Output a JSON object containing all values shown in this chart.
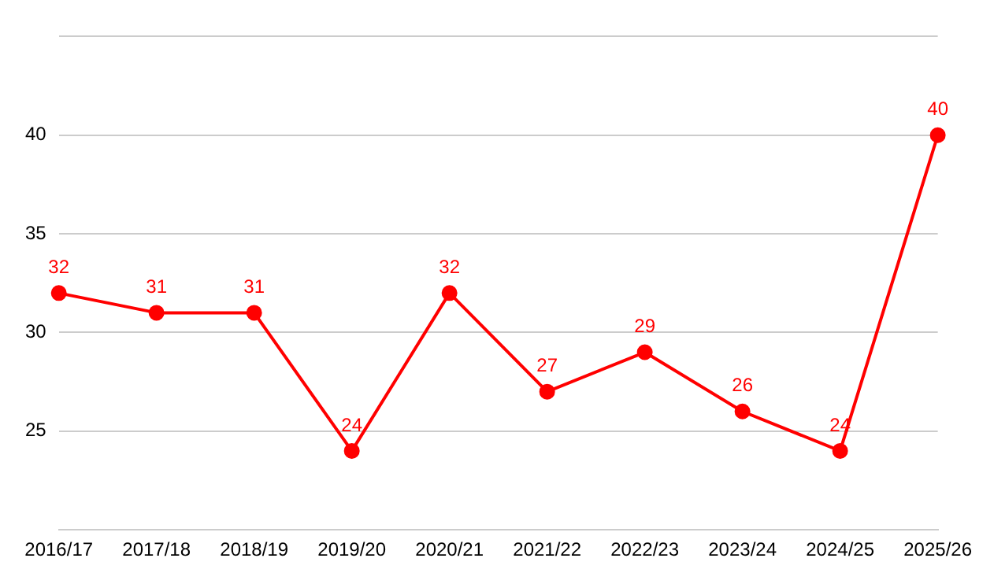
{
  "chart_data": {
    "type": "line",
    "categories": [
      "2016/17",
      "2017/18",
      "2018/19",
      "2019/20",
      "2020/21",
      "2021/22",
      "2022/23",
      "2023/24",
      "2024/25",
      "2025/26"
    ],
    "series": [
      {
        "color": "#ff0000",
        "values": [
          32,
          31,
          31,
          24,
          32,
          27,
          29,
          26,
          24,
          40
        ]
      }
    ],
    "ylim": [
      20,
      45
    ],
    "yticks": [
      {
        "value": 20,
        "label": null
      },
      25,
      30,
      35,
      40,
      {
        "value": 45,
        "label": null
      }
    ],
    "grid": "y",
    "legend": false,
    "marker": "circle",
    "line_style": "solid",
    "data_labels": true
  }
}
